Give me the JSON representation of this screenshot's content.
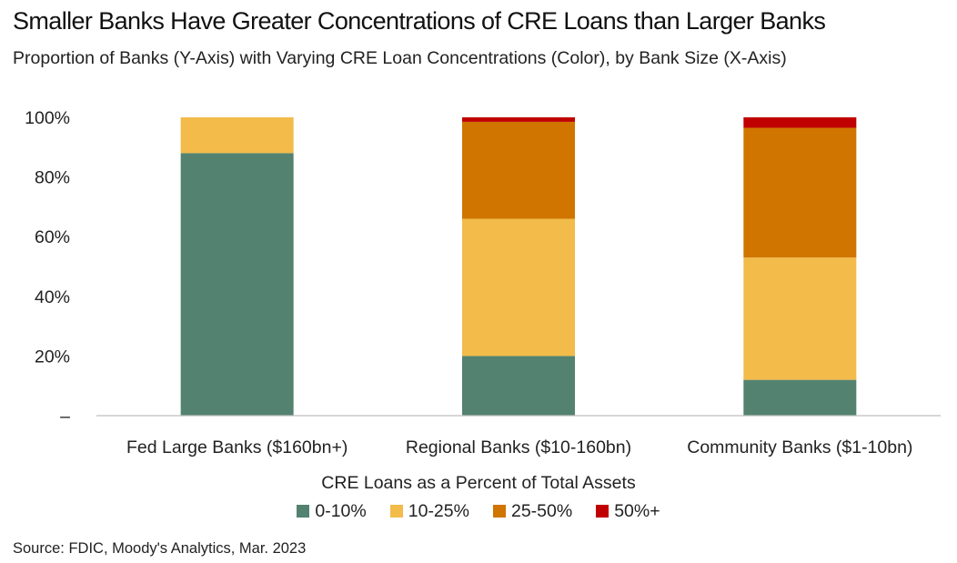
{
  "title": "Smaller Banks Have Greater Concentrations of CRE Loans than Larger Banks",
  "subtitle": "Proportion of Banks (Y-Axis) with Varying CRE Loan Concentrations (Color), by Bank Size (X-Axis)",
  "legend_title": "CRE Loans as a Percent of Total Assets",
  "source": "Source: FDIC, Moody's Analytics, Mar. 2023",
  "chart_data": {
    "type": "bar",
    "stacked": true,
    "title": "Smaller Banks Have Greater Concentrations of CRE Loans than Larger Banks",
    "subtitle": "Proportion of Banks (Y-Axis) with Varying CRE Loan Concentrations (Color), by Bank Size (X-Axis)",
    "categories": [
      "Fed Large Banks ($160bn+)",
      "Regional Banks ($10-160bn)",
      "Community Banks ($1-10bn)"
    ],
    "series": [
      {
        "name": "0-10%",
        "color": "#538270",
        "values": [
          88,
          20,
          12
        ]
      },
      {
        "name": "10-25%",
        "color": "#f2bb4a",
        "values": [
          12,
          46,
          41
        ]
      },
      {
        "name": "25-50%",
        "color": "#cf7500",
        "values": [
          0,
          32.5,
          43.5
        ]
      },
      {
        "name": "50%+",
        "color": "#c00000",
        "values": [
          0,
          1.5,
          3.5
        ]
      }
    ],
    "ylim": [
      0,
      100
    ],
    "yticks": [
      "–",
      "20%",
      "40%",
      "60%",
      "80%",
      "100%"
    ],
    "ytick_values": [
      0,
      20,
      40,
      60,
      80,
      100
    ],
    "legend": "bottom",
    "grid": false
  }
}
